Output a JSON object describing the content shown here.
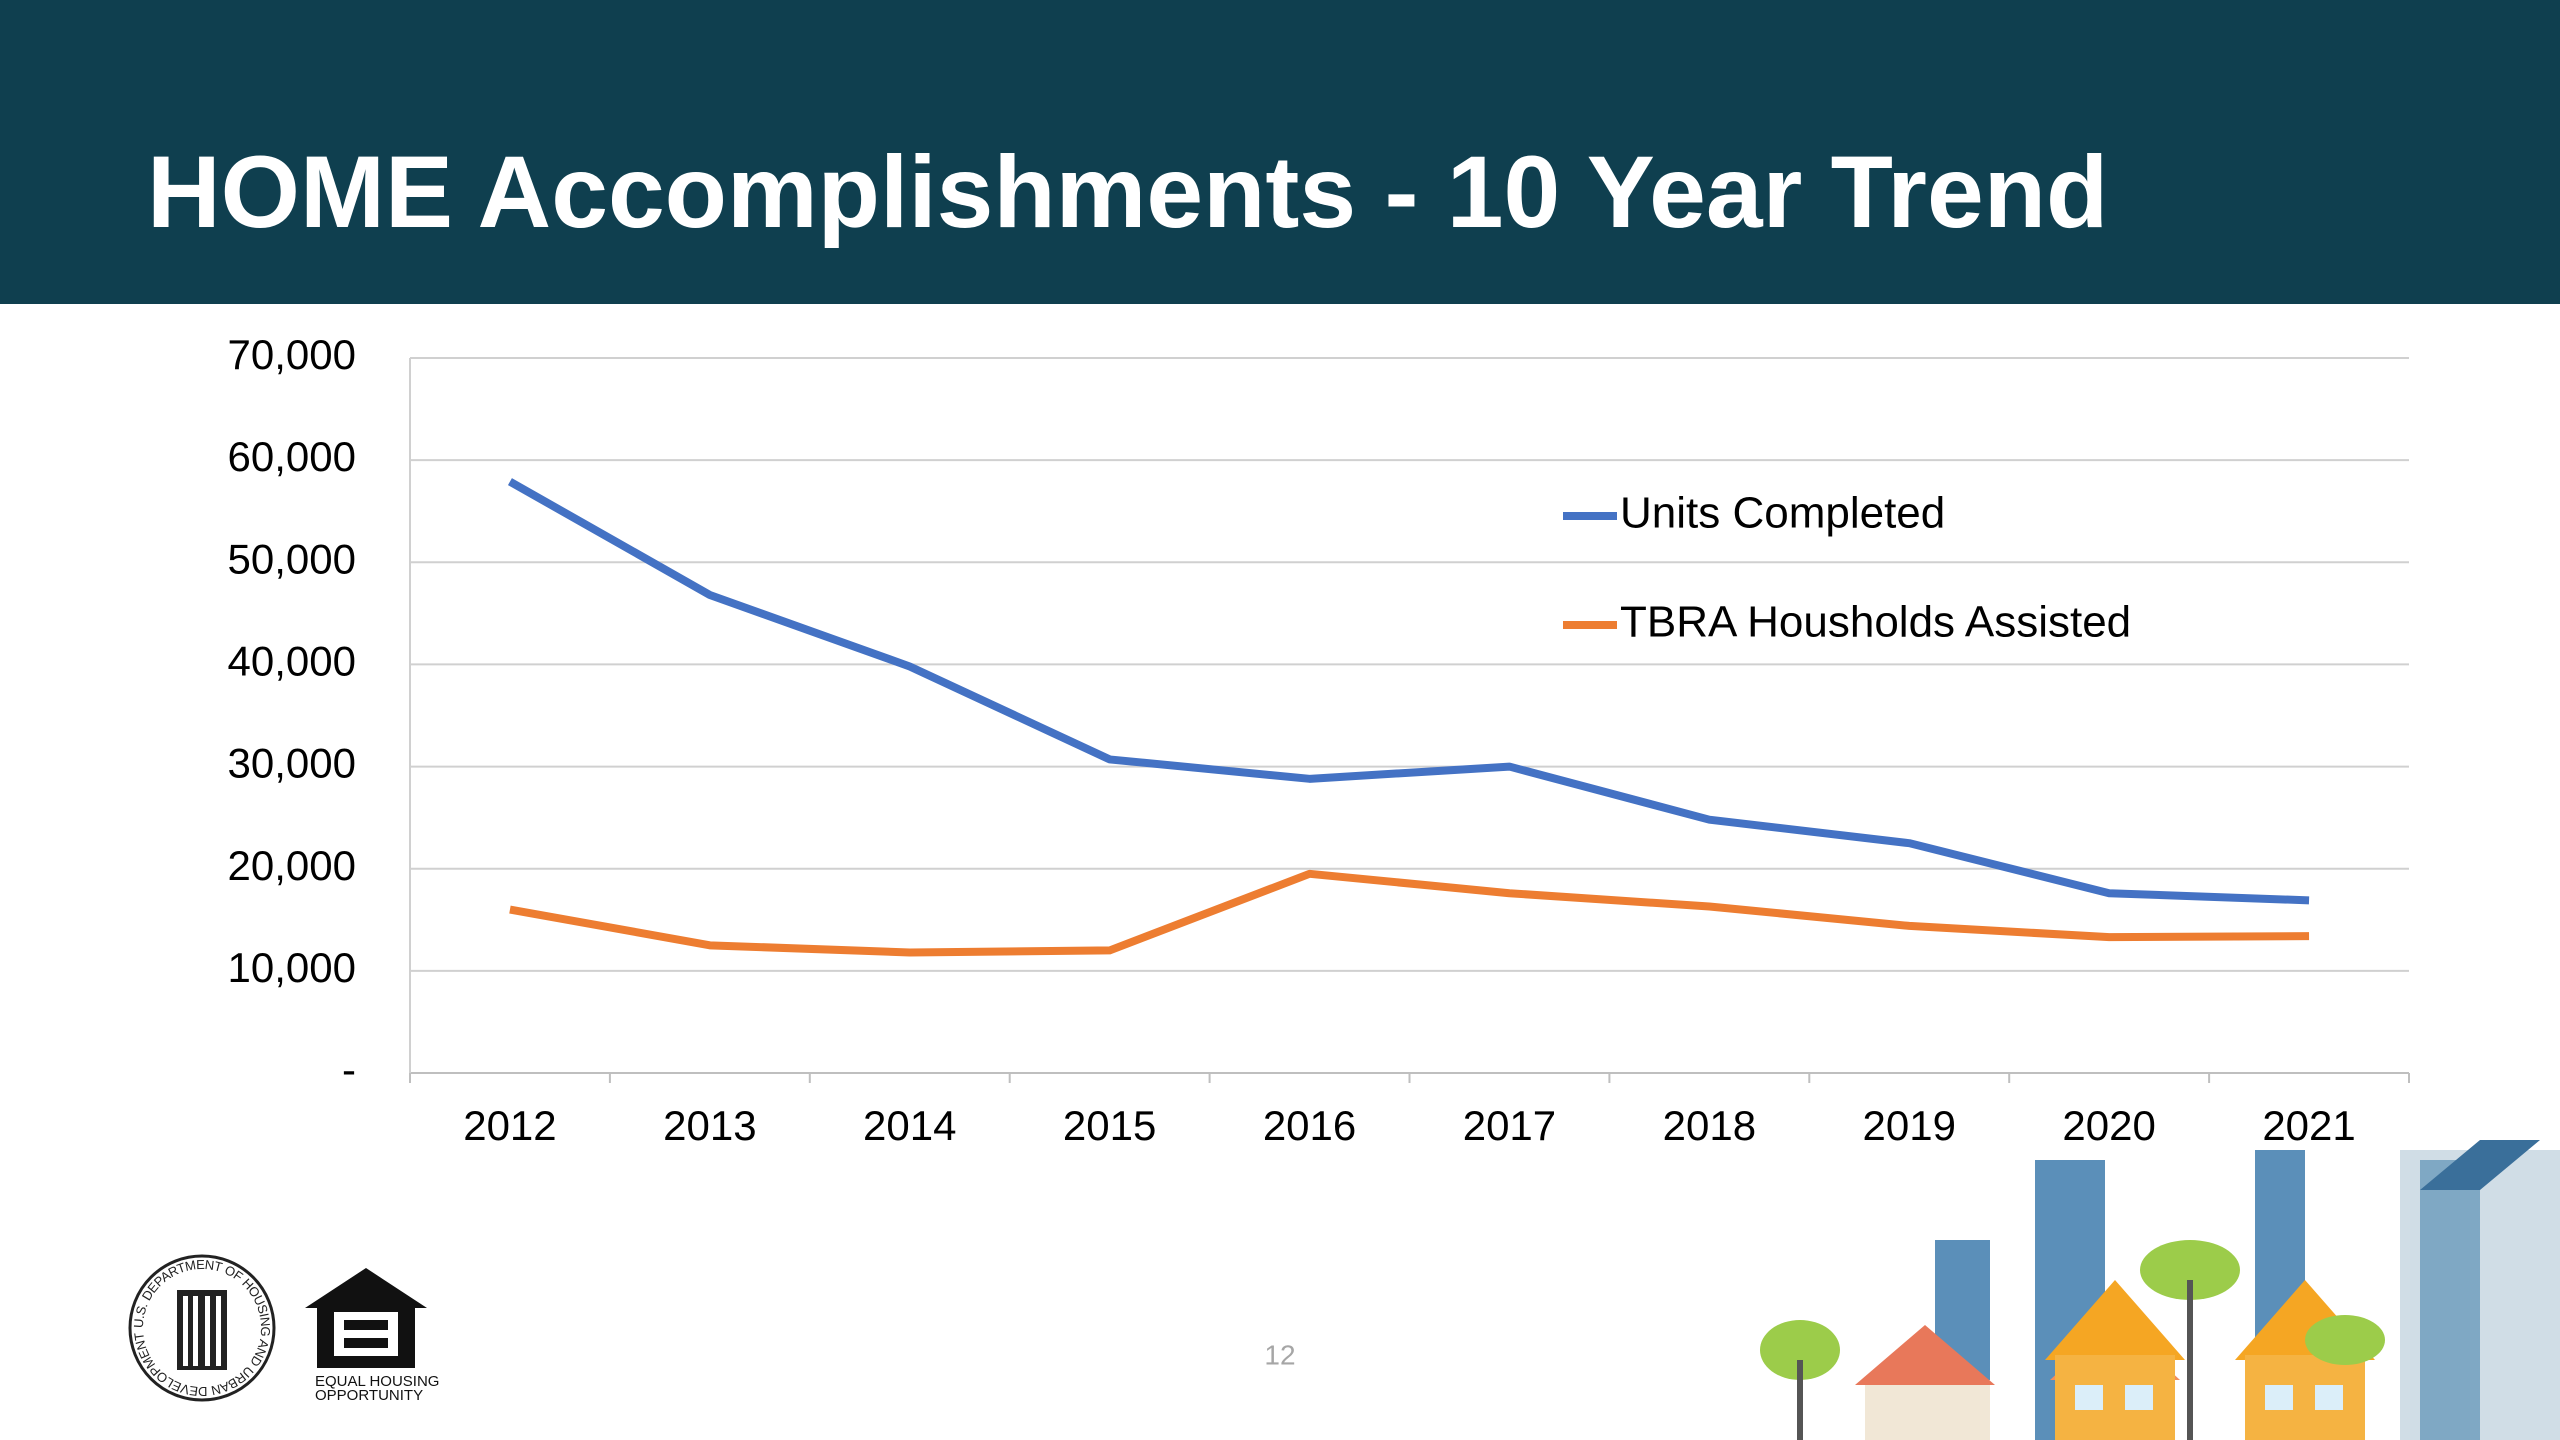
{
  "chart_data": {
    "type": "line",
    "title": "HOME Accomplishments - 10 Year Trend",
    "categories": [
      "2012",
      "2013",
      "2014",
      "2015",
      "2016",
      "2017",
      "2018",
      "2019",
      "2020",
      "2021"
    ],
    "series": [
      {
        "name": "Units Completed",
        "color": "#4472c4",
        "values": [
          57900,
          46800,
          39800,
          30700,
          28800,
          30000,
          24800,
          22500,
          17600,
          16900
        ]
      },
      {
        "name": "TBRA Housholds Assisted",
        "color": "#ed7d31",
        "values": [
          16000,
          12500,
          11800,
          12000,
          19500,
          17600,
          16300,
          14400,
          13300,
          13400
        ]
      }
    ],
    "ylim": [
      0,
      70000
    ],
    "yticks": [
      {
        "value": 0,
        "label": "-"
      },
      {
        "value": 10000,
        "label": "10,000"
      },
      {
        "value": 20000,
        "label": "20,000"
      },
      {
        "value": 30000,
        "label": "30,000"
      },
      {
        "value": 40000,
        "label": "40,000"
      },
      {
        "value": 50000,
        "label": "50,000"
      },
      {
        "value": 60000,
        "label": "60,000"
      },
      {
        "value": 70000,
        "label": "70,000"
      }
    ],
    "grid": true,
    "legend": "upper right"
  },
  "page_number": "12",
  "logos": {
    "hud_seal": "U.S. DEPARTMENT OF HOUSING AND URBAN DEVELOPMENT",
    "equal_housing": [
      "EQUAL HOUSING",
      "OPPORTUNITY"
    ]
  }
}
